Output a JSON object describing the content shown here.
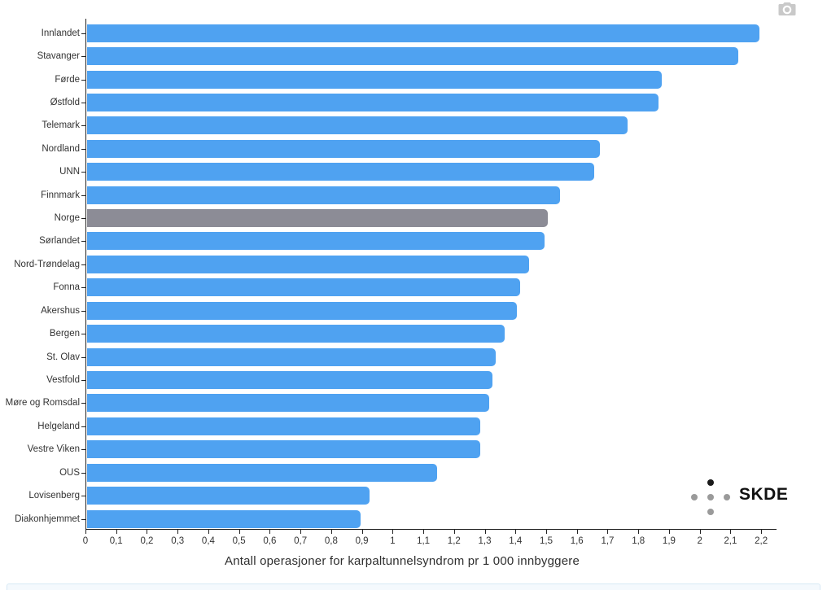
{
  "chart_data": {
    "type": "bar",
    "orientation": "horizontal",
    "title": "",
    "xlabel": "Antall operasjoner for karpaltunnelsyndrom pr 1 000 innbyggere",
    "ylabel": "",
    "xlim": [
      0,
      2.25
    ],
    "grid": false,
    "legend": "none",
    "categories": [
      "Innlandet",
      "Stavanger",
      "Førde",
      "Østfold",
      "Telemark",
      "Nordland",
      "UNN",
      "Finnmark",
      "Norge",
      "Sørlandet",
      "Nord-Trøndelag",
      "Fonna",
      "Akershus",
      "Bergen",
      "St. Olav",
      "Vestfold",
      "Møre og Romsdal",
      "Helgeland",
      "Vestre Viken",
      "OUS",
      "Lovisenberg",
      "Diakonhjemmet"
    ],
    "values": [
      2.19,
      2.12,
      1.87,
      1.86,
      1.76,
      1.67,
      1.65,
      1.54,
      1.5,
      1.49,
      1.44,
      1.41,
      1.4,
      1.36,
      1.33,
      1.32,
      1.31,
      1.28,
      1.28,
      1.14,
      0.92,
      0.89
    ],
    "highlight_category": "Norge",
    "colors": {
      "bar": "#4FA2F1",
      "highlight_bar": "#8C8C96",
      "axis": "#222222",
      "label": "#333333"
    },
    "xticks": [
      "0",
      "0,1",
      "0,2",
      "0,3",
      "0,4",
      "0,5",
      "0,6",
      "0,7",
      "0,8",
      "0,9",
      "1",
      "1,1",
      "1,2",
      "1,3",
      "1,4",
      "1,5",
      "1,6",
      "1,7",
      "1,8",
      "1,9",
      "2",
      "2,1",
      "2,2"
    ]
  },
  "logo": {
    "text": "SKDE"
  },
  "icons": {
    "export": "camera-icon"
  }
}
